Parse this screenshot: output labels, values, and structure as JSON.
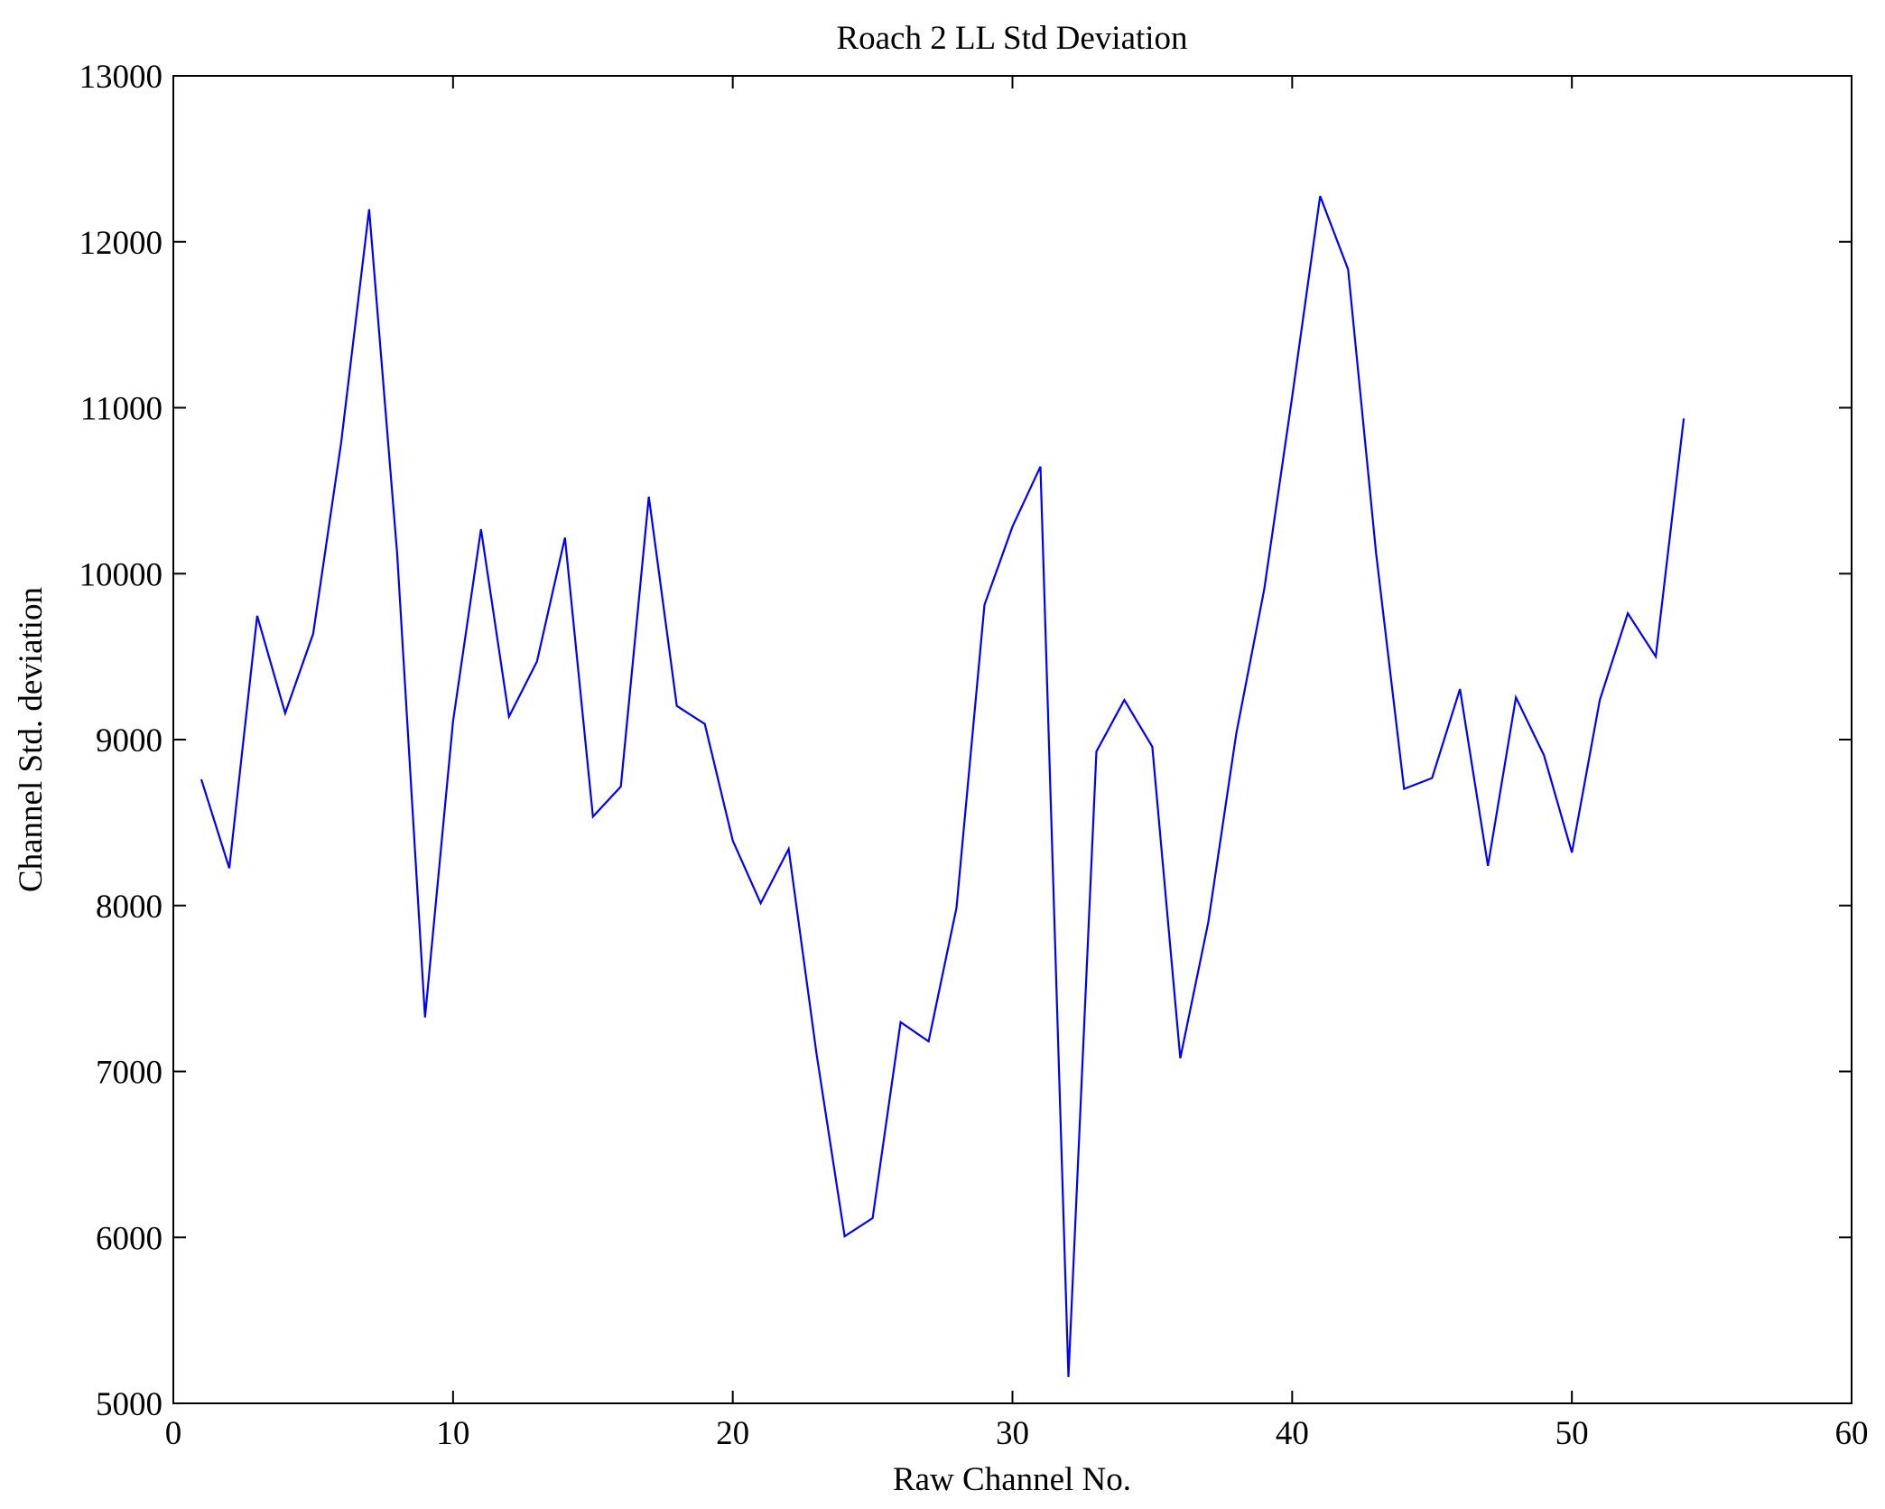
{
  "chart_data": {
    "type": "line",
    "title": "Roach 2 LL Std Deviation",
    "xlabel": "Raw Channel No.",
    "ylabel": "Channel Std. deviation",
    "xlim": [
      0,
      60
    ],
    "ylim": [
      5000,
      13000
    ],
    "xticks": [
      0,
      10,
      20,
      30,
      40,
      50,
      60
    ],
    "yticks": [
      5000,
      6000,
      7000,
      8000,
      9000,
      10000,
      11000,
      12000,
      13000
    ],
    "grid": false,
    "series": [
      {
        "name": "LL",
        "color": "#0000ff",
        "x": [
          1,
          2,
          3,
          4,
          5,
          6,
          7,
          8,
          9,
          10,
          11,
          12,
          13,
          14,
          15,
          16,
          17,
          18,
          19,
          20,
          21,
          22,
          23,
          24,
          25,
          26,
          27,
          28,
          29,
          30,
          31,
          32,
          33,
          34,
          35,
          36,
          37,
          38,
          39,
          40,
          41,
          42,
          43,
          44,
          45,
          46,
          47,
          48,
          49,
          50,
          51,
          52,
          53,
          54
        ],
        "y": [
          8760,
          8225,
          9746,
          9159,
          9638,
          10790,
          12196,
          10123,
          7326,
          9109,
          10268,
          9138,
          9471,
          10217,
          8536,
          8717,
          10464,
          9203,
          9094,
          8391,
          8014,
          8341,
          7101,
          6007,
          6116,
          7297,
          7181,
          7986,
          9812,
          10283,
          10645,
          5159,
          8928,
          9239,
          8957,
          7080,
          7899,
          9036,
          9906,
          11065,
          12275,
          11833,
          10123,
          8703,
          8768,
          9304,
          8239,
          9254,
          8906,
          8319,
          9239,
          9761,
          9500,
          10935
        ]
      }
    ]
  }
}
